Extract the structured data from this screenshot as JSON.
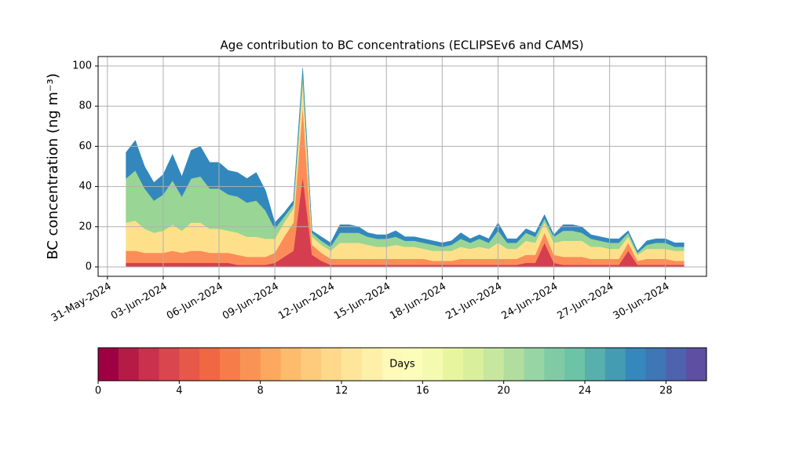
{
  "chart_data": {
    "type": "stacked_area",
    "title": "Age contribution to BC concentrations (ECLIPSEv6 and CAMS)",
    "y_label": "BC concentration (ng m⁻³)",
    "x": [
      "2024-06-01T00:00",
      "2024-06-01T12:00",
      "2024-06-02T00:00",
      "2024-06-02T12:00",
      "2024-06-03T00:00",
      "2024-06-03T12:00",
      "2024-06-04T00:00",
      "2024-06-04T12:00",
      "2024-06-05T00:00",
      "2024-06-05T12:00",
      "2024-06-06T00:00",
      "2024-06-06T12:00",
      "2024-06-07T00:00",
      "2024-06-07T12:00",
      "2024-06-08T00:00",
      "2024-06-08T12:00",
      "2024-06-09T00:00",
      "2024-06-09T12:00",
      "2024-06-10T00:00",
      "2024-06-10T12:00",
      "2024-06-11T00:00",
      "2024-06-11T12:00",
      "2024-06-12T00:00",
      "2024-06-12T12:00",
      "2024-06-13T00:00",
      "2024-06-13T12:00",
      "2024-06-14T00:00",
      "2024-06-14T12:00",
      "2024-06-15T00:00",
      "2024-06-15T12:00",
      "2024-06-16T00:00",
      "2024-06-16T12:00",
      "2024-06-17T00:00",
      "2024-06-17T12:00",
      "2024-06-18T00:00",
      "2024-06-18T12:00",
      "2024-06-19T00:00",
      "2024-06-19T12:00",
      "2024-06-20T00:00",
      "2024-06-20T12:00",
      "2024-06-21T00:00",
      "2024-06-21T12:00",
      "2024-06-22T00:00",
      "2024-06-22T12:00",
      "2024-06-23T00:00",
      "2024-06-23T12:00",
      "2024-06-24T00:00",
      "2024-06-24T12:00",
      "2024-06-25T00:00",
      "2024-06-25T12:00",
      "2024-06-26T00:00",
      "2024-06-26T12:00",
      "2024-06-27T00:00",
      "2024-06-27T12:00",
      "2024-06-28T00:00",
      "2024-06-28T12:00",
      "2024-06-29T00:00",
      "2024-06-29T12:00",
      "2024-06-30T00:00",
      "2024-06-30T12:00",
      "2024-07-01T00:00"
    ],
    "series": [
      {
        "color": "#d53e4f",
        "values": [
          2,
          2,
          2,
          2,
          2,
          2,
          2,
          2,
          2,
          2,
          2,
          2,
          1,
          1,
          1,
          1,
          2,
          5,
          8,
          45,
          6,
          3,
          1,
          1,
          1,
          1,
          1,
          1,
          1,
          1,
          1,
          1,
          1,
          1,
          1,
          1,
          1,
          1,
          1,
          1,
          1,
          1,
          1,
          2,
          2,
          12,
          2,
          1,
          1,
          1,
          1,
          1,
          1,
          1,
          8,
          1,
          1,
          1,
          1,
          1,
          1
        ]
      },
      {
        "color": "#fc8d59",
        "values": [
          6,
          6,
          5,
          5,
          5,
          6,
          5,
          6,
          6,
          5,
          5,
          5,
          5,
          4,
          4,
          4,
          5,
          10,
          14,
          35,
          5,
          4,
          3,
          3,
          3,
          3,
          3,
          3,
          3,
          3,
          3,
          3,
          3,
          2,
          2,
          2,
          3,
          3,
          3,
          3,
          3,
          3,
          3,
          4,
          4,
          5,
          4,
          4,
          4,
          4,
          3,
          3,
          3,
          3,
          4,
          2,
          3,
          3,
          3,
          2,
          2
        ]
      },
      {
        "color": "#fee08b",
        "values": [
          14,
          15,
          12,
          10,
          11,
          13,
          11,
          14,
          14,
          12,
          12,
          11,
          11,
          10,
          10,
          9,
          7,
          7,
          7,
          12,
          4,
          4,
          4,
          8,
          8,
          8,
          7,
          6,
          6,
          7,
          6,
          6,
          5,
          5,
          5,
          5,
          6,
          5,
          6,
          5,
          8,
          5,
          5,
          7,
          6,
          5,
          6,
          8,
          8,
          8,
          6,
          6,
          5,
          5,
          3,
          3,
          5,
          5,
          5,
          5,
          5
        ]
      },
      {
        "color": "#99d594",
        "values": [
          22,
          25,
          20,
          16,
          18,
          22,
          17,
          22,
          23,
          20,
          20,
          18,
          18,
          17,
          18,
          14,
          5,
          3,
          2,
          4,
          2,
          2,
          2,
          5,
          5,
          5,
          4,
          4,
          4,
          4,
          3,
          3,
          3,
          3,
          2,
          3,
          4,
          3,
          4,
          3,
          6,
          3,
          3,
          4,
          3,
          2,
          3,
          5,
          5,
          4,
          4,
          3,
          3,
          3,
          2,
          1,
          2,
          3,
          3,
          2,
          2
        ]
      },
      {
        "color": "#3288bd",
        "values": [
          13,
          15,
          11,
          9,
          10,
          13,
          10,
          14,
          15,
          13,
          13,
          12,
          12,
          12,
          14,
          10,
          3,
          2,
          2,
          3,
          1,
          2,
          2,
          4,
          4,
          3,
          2,
          2,
          2,
          3,
          2,
          2,
          2,
          2,
          2,
          2,
          3,
          2,
          2,
          2,
          4,
          2,
          2,
          2,
          2,
          2,
          1,
          3,
          3,
          3,
          2,
          2,
          2,
          2,
          1,
          1,
          2,
          2,
          2,
          2,
          2
        ]
      }
    ],
    "xlim": [
      "2024-05-30T12:00",
      "2024-07-02T05:00"
    ],
    "xticks": [
      {
        "value": "2024-05-31T00:00",
        "label": "31-May-2024"
      },
      {
        "value": "2024-06-03T00:00",
        "label": "03-Jun-2024"
      },
      {
        "value": "2024-06-06T00:00",
        "label": "06-Jun-2024"
      },
      {
        "value": "2024-06-09T00:00",
        "label": "09-Jun-2024"
      },
      {
        "value": "2024-06-12T00:00",
        "label": "12-Jun-2024"
      },
      {
        "value": "2024-06-15T00:00",
        "label": "15-Jun-2024"
      },
      {
        "value": "2024-06-18T00:00",
        "label": "18-Jun-2024"
      },
      {
        "value": "2024-06-21T00:00",
        "label": "21-Jun-2024"
      },
      {
        "value": "2024-06-24T00:00",
        "label": "24-Jun-2024"
      },
      {
        "value": "2024-06-27T00:00",
        "label": "27-Jun-2024"
      },
      {
        "value": "2024-06-30T00:00",
        "label": "30-Jun-2024"
      }
    ],
    "ylim": [
      -4.7,
      104.7
    ],
    "yticks": [
      0,
      20,
      40,
      60,
      80,
      100
    ],
    "grid": true,
    "colorbar": {
      "label": "Days",
      "lim": [
        0,
        30
      ],
      "ticks": [
        0,
        4,
        8,
        12,
        16,
        20,
        24,
        28
      ],
      "colors": [
        "#9e0142",
        "#b41b47",
        "#c9314c",
        "#da464d",
        "#e65848",
        "#f06744",
        "#f67c4a",
        "#f99355",
        "#fca85f",
        "#fdbb6c",
        "#fdcb7b",
        "#fed98b",
        "#fee59a",
        "#feefa9",
        "#fff9b8",
        "#fdfdba",
        "#f4fab0",
        "#e8f59f",
        "#d9ef9b",
        "#c6e79d",
        "#b1de9f",
        "#98d5a4",
        "#7fcba5",
        "#6cc3a5",
        "#57b0ac",
        "#449cb3",
        "#3588bc",
        "#3e76b6",
        "#4e63ad",
        "#5e4fa2"
      ]
    }
  }
}
